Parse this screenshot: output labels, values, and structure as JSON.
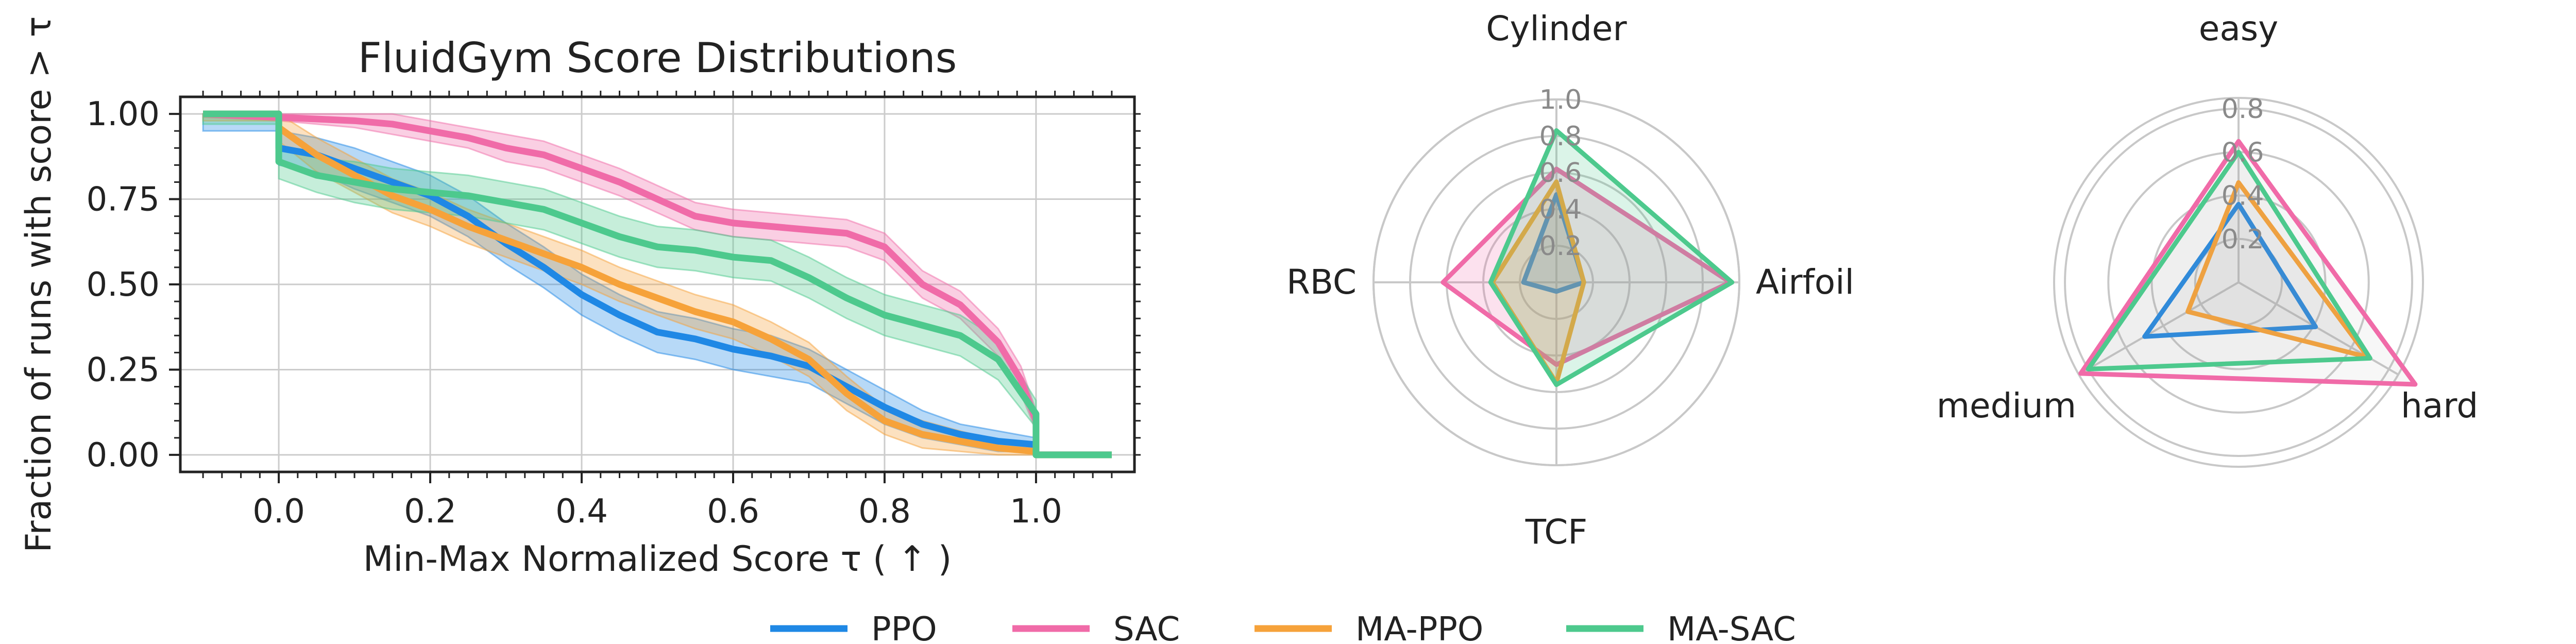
{
  "colors": {
    "PPO": "#1f88e5",
    "SAC": "#f06ba8",
    "MA-PPO": "#f6a23a",
    "MA-SAC": "#4dc98d",
    "grid": "#cccccc",
    "radar_grid": "#c8c8c8"
  },
  "legend": {
    "entries": [
      "PPO",
      "SAC",
      "MA-PPO",
      "MA-SAC"
    ],
    "placement": "bottom-center"
  },
  "chart_data": [
    {
      "type": "line",
      "title": "FluidGym Score Distributions",
      "xlabel": "Min-Max Normalized Score τ ( ↑ )",
      "ylabel": "Fraction of runs with score > τ",
      "xlim": [
        -0.13,
        1.13
      ],
      "ylim": [
        -0.05,
        1.05
      ],
      "xticks": [
        "0.0",
        "0.2",
        "0.4",
        "0.6",
        "0.8",
        "1.0"
      ],
      "yticks": [
        "0.00",
        "0.25",
        "0.50",
        "0.75",
        "1.00"
      ],
      "grid": true,
      "series": [
        {
          "name": "PPO",
          "x": [
            -0.1,
            0.0,
            0.0,
            0.05,
            0.1,
            0.15,
            0.2,
            0.25,
            0.3,
            0.35,
            0.4,
            0.45,
            0.5,
            0.55,
            0.6,
            0.65,
            0.7,
            0.75,
            0.8,
            0.85,
            0.9,
            0.95,
            1.0,
            1.0,
            1.1
          ],
          "y": [
            1.0,
            1.0,
            0.9,
            0.88,
            0.84,
            0.8,
            0.76,
            0.7,
            0.62,
            0.55,
            0.47,
            0.41,
            0.36,
            0.34,
            0.31,
            0.29,
            0.26,
            0.2,
            0.14,
            0.09,
            0.06,
            0.04,
            0.03,
            0.0,
            0.0
          ],
          "band": [
            0.05,
            0.05,
            0.05,
            0.05,
            0.06,
            0.06,
            0.06,
            0.06,
            0.06,
            0.06,
            0.06,
            0.06,
            0.06,
            0.06,
            0.06,
            0.06,
            0.05,
            0.05,
            0.05,
            0.04,
            0.03,
            0.03,
            0.02,
            0.0,
            0.0
          ]
        },
        {
          "name": "SAC",
          "x": [
            -0.1,
            0.0,
            0.1,
            0.15,
            0.2,
            0.25,
            0.3,
            0.35,
            0.4,
            0.45,
            0.5,
            0.55,
            0.6,
            0.65,
            0.7,
            0.75,
            0.8,
            0.85,
            0.9,
            0.95,
            0.98,
            1.0,
            1.0,
            1.1
          ],
          "y": [
            1.0,
            0.99,
            0.98,
            0.97,
            0.95,
            0.93,
            0.9,
            0.88,
            0.84,
            0.8,
            0.75,
            0.7,
            0.68,
            0.67,
            0.66,
            0.65,
            0.61,
            0.5,
            0.44,
            0.33,
            0.22,
            0.1,
            0.0,
            0.0
          ],
          "band": [
            0.01,
            0.01,
            0.02,
            0.03,
            0.03,
            0.03,
            0.04,
            0.04,
            0.04,
            0.04,
            0.04,
            0.04,
            0.04,
            0.04,
            0.04,
            0.04,
            0.04,
            0.04,
            0.04,
            0.04,
            0.04,
            0.03,
            0.0,
            0.0
          ]
        },
        {
          "name": "MA-PPO",
          "x": [
            -0.1,
            0.0,
            0.0,
            0.05,
            0.1,
            0.15,
            0.2,
            0.25,
            0.3,
            0.35,
            0.4,
            0.45,
            0.5,
            0.55,
            0.6,
            0.65,
            0.7,
            0.75,
            0.8,
            0.85,
            0.9,
            0.95,
            1.0,
            1.0,
            1.1
          ],
          "y": [
            1.0,
            1.0,
            0.96,
            0.88,
            0.82,
            0.76,
            0.72,
            0.67,
            0.63,
            0.59,
            0.55,
            0.5,
            0.46,
            0.42,
            0.39,
            0.34,
            0.28,
            0.18,
            0.1,
            0.06,
            0.04,
            0.02,
            0.01,
            0.0,
            0.0
          ],
          "band": [
            0.02,
            0.02,
            0.04,
            0.05,
            0.05,
            0.05,
            0.05,
            0.05,
            0.05,
            0.05,
            0.05,
            0.05,
            0.05,
            0.05,
            0.05,
            0.05,
            0.05,
            0.05,
            0.04,
            0.04,
            0.03,
            0.02,
            0.01,
            0.0,
            0.0
          ]
        },
        {
          "name": "MA-SAC",
          "x": [
            -0.1,
            0.0,
            0.0,
            0.05,
            0.1,
            0.15,
            0.2,
            0.25,
            0.3,
            0.35,
            0.4,
            0.45,
            0.5,
            0.55,
            0.6,
            0.65,
            0.7,
            0.75,
            0.8,
            0.85,
            0.9,
            0.95,
            1.0,
            1.0,
            1.1
          ],
          "y": [
            1.0,
            1.0,
            0.86,
            0.82,
            0.8,
            0.78,
            0.77,
            0.76,
            0.74,
            0.72,
            0.68,
            0.64,
            0.61,
            0.6,
            0.58,
            0.57,
            0.52,
            0.46,
            0.41,
            0.38,
            0.35,
            0.28,
            0.12,
            0.0,
            0.0
          ],
          "band": [
            0.03,
            0.03,
            0.05,
            0.05,
            0.06,
            0.06,
            0.06,
            0.06,
            0.06,
            0.06,
            0.06,
            0.06,
            0.06,
            0.06,
            0.06,
            0.06,
            0.06,
            0.06,
            0.06,
            0.06,
            0.06,
            0.06,
            0.04,
            0.0,
            0.0
          ]
        }
      ]
    },
    {
      "type": "radar",
      "axes": [
        "Cylinder",
        "Airfoil",
        "TCF",
        "RBC"
      ],
      "rmax": 1.0,
      "rticks": [
        "0.2",
        "0.4",
        "0.6",
        "0.8",
        "1.0"
      ],
      "rtick_values": [
        0.2,
        0.4,
        0.6,
        0.8,
        1.0
      ],
      "fill": true,
      "series": [
        {
          "name": "PPO",
          "values": [
            0.48,
            0.15,
            0.05,
            0.18
          ]
        },
        {
          "name": "SAC",
          "values": [
            0.62,
            0.95,
            0.45,
            0.62
          ]
        },
        {
          "name": "MA-PPO",
          "values": [
            0.55,
            0.15,
            0.55,
            0.35
          ]
        },
        {
          "name": "MA-SAC",
          "values": [
            0.83,
            0.96,
            0.56,
            0.36
          ]
        }
      ]
    },
    {
      "type": "radar",
      "axes": [
        "easy",
        "hard",
        "medium"
      ],
      "rmax": 0.85,
      "rticks": [
        "0.2",
        "0.4",
        "0.6",
        "0.8"
      ],
      "rtick_values": [
        0.2,
        0.4,
        0.6,
        0.8
      ],
      "fill": false,
      "series": [
        {
          "name": "PPO",
          "values": [
            0.36,
            0.41,
            0.5
          ]
        },
        {
          "name": "SAC",
          "values": [
            0.65,
            0.94,
            0.84
          ]
        },
        {
          "name": "MA-PPO",
          "values": [
            0.46,
            0.69,
            0.27
          ]
        },
        {
          "name": "MA-SAC",
          "values": [
            0.6,
            0.7,
            0.8
          ]
        }
      ]
    }
  ]
}
